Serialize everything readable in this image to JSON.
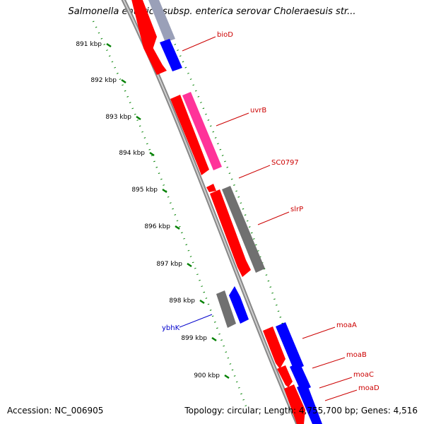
{
  "title": "Salmonella enterica subsp. enterica serovar Choleraesuis str...",
  "footer": {
    "accession": "Accession: NC_006905",
    "summary": "Topology: circular; Length: 4,755,700 bp; Genes: 4,516"
  },
  "ticks": [
    {
      "label": "891 kbp"
    },
    {
      "label": "892 kbp"
    },
    {
      "label": "893 kbp"
    },
    {
      "label": "894 kbp"
    },
    {
      "label": "895 kbp"
    },
    {
      "label": "896 kbp"
    },
    {
      "label": "897 kbp"
    },
    {
      "label": "898 kbp"
    },
    {
      "label": "899 kbp"
    },
    {
      "label": "900 kbp"
    }
  ],
  "gene_labels": [
    {
      "name": "bioD",
      "color": "#cc0000"
    },
    {
      "name": "uvrB",
      "color": "#cc0000"
    },
    {
      "name": "SC0797",
      "color": "#cc0000"
    },
    {
      "name": "slrP",
      "color": "#cc0000"
    },
    {
      "name": "ybhK",
      "color": "#0000cc"
    },
    {
      "name": "moaA",
      "color": "#cc0000"
    },
    {
      "name": "moaB",
      "color": "#cc0000"
    },
    {
      "name": "moaC",
      "color": "#cc0000"
    },
    {
      "name": "moaD",
      "color": "#cc0000"
    }
  ],
  "colors": {
    "forward_gene": "#ff0000",
    "reverse_gene": "#0000ff",
    "pink_gene": "#ff3399",
    "gray_gene": "#707070",
    "backbone": "#888888",
    "tick_marks": "#008000"
  }
}
